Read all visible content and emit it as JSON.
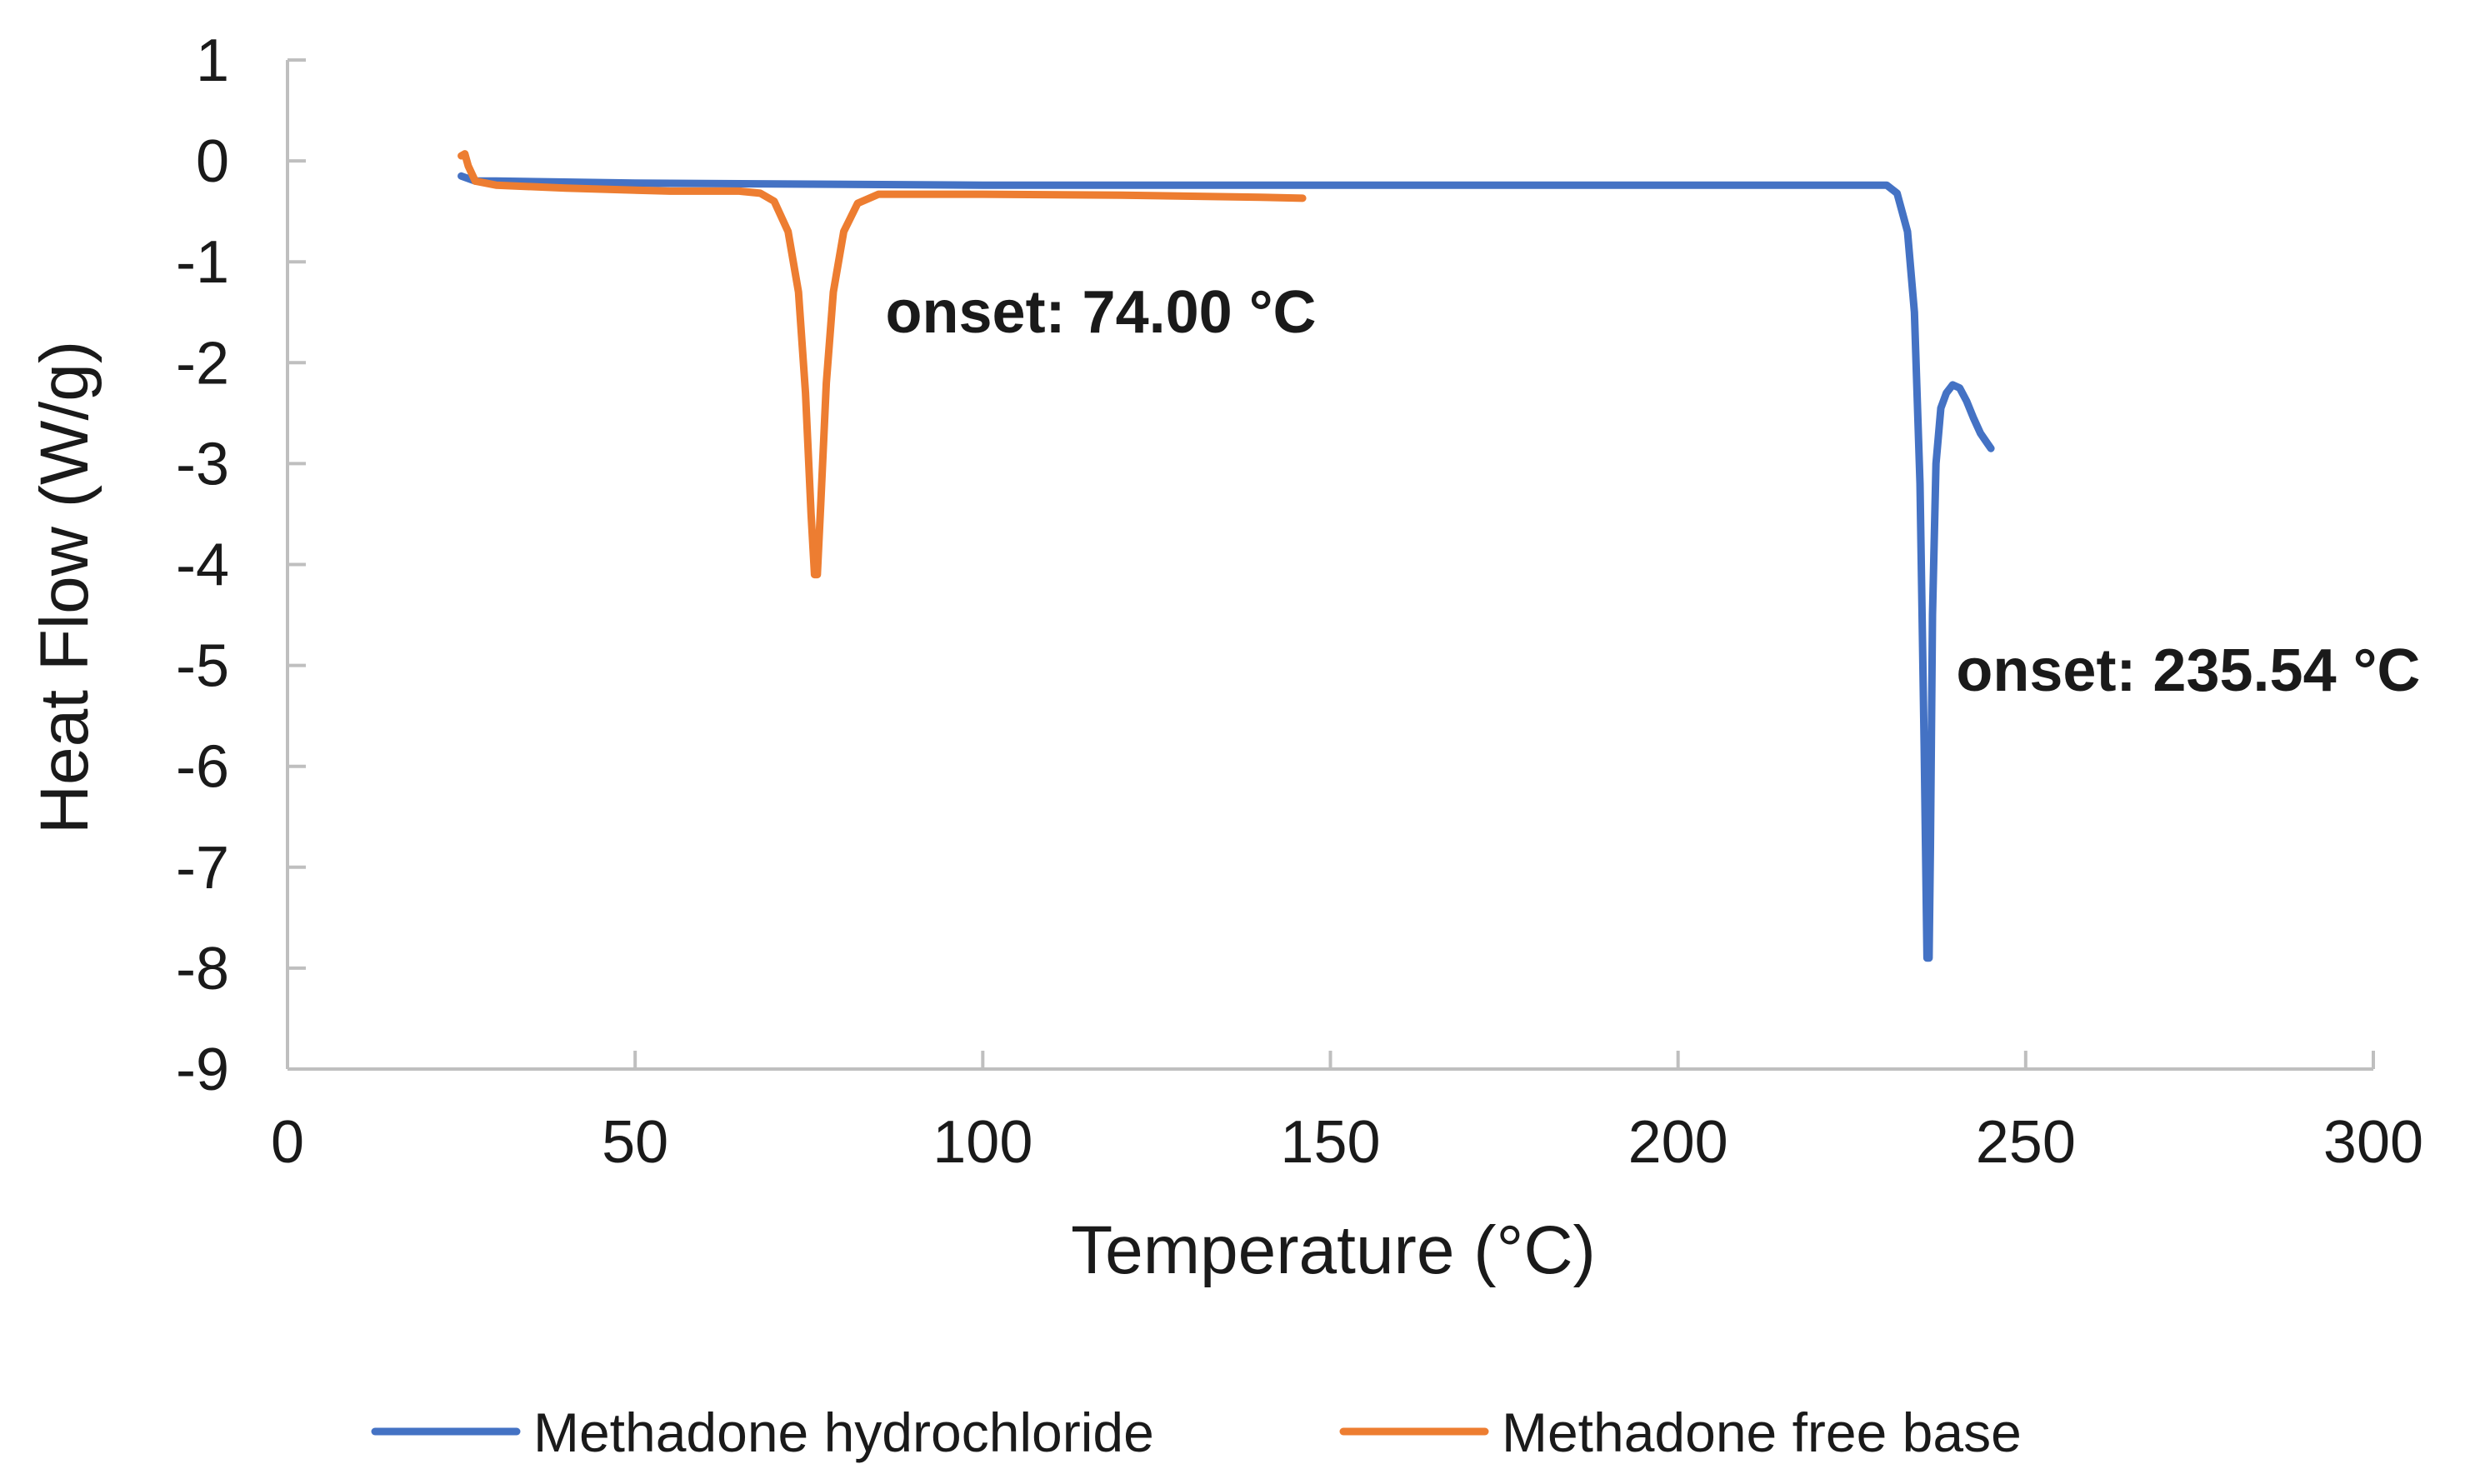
{
  "chart_data": {
    "type": "line",
    "title": "",
    "xlabel": "Temperature (°C)",
    "ylabel": "Heat Flow (W/g)",
    "xlim": [
      0,
      300
    ],
    "ylim": [
      -9,
      1
    ],
    "xticks": [
      0,
      50,
      100,
      150,
      200,
      250,
      300
    ],
    "yticks": [
      1,
      0,
      -1,
      -2,
      -3,
      -4,
      -5,
      -6,
      -7,
      -8,
      -9
    ],
    "xtick_labels": [
      "0",
      "50",
      "100",
      "150",
      "200",
      "250",
      "300"
    ],
    "ytick_labels": [
      "1",
      "0",
      "-1",
      "-2",
      "-3",
      "-4",
      "-5",
      "-6",
      "-7",
      "-8",
      "-9"
    ],
    "grid": false,
    "legend_position": "bottom-center",
    "series": [
      {
        "name": "Methadone hydrochloride",
        "color": "#4472C4",
        "x": [
          25,
          27,
          30,
          50,
          100,
          150,
          200,
          225,
          230,
          231.5,
          233,
          234,
          234.8,
          235.4,
          235.8,
          236.1,
          236.3,
          236.6,
          237.1,
          237.8,
          238.6,
          239.5,
          240.5,
          241.5,
          242.5,
          243.5,
          244.5,
          245
        ],
        "y": [
          -0.15,
          -0.2,
          -0.2,
          -0.22,
          -0.24,
          -0.24,
          -0.24,
          -0.24,
          -0.24,
          -0.32,
          -0.7,
          -1.5,
          -3.2,
          -5.8,
          -7.9,
          -7.9,
          -6.8,
          -4.5,
          -3.0,
          -2.45,
          -2.3,
          -2.22,
          -2.25,
          -2.38,
          -2.55,
          -2.7,
          -2.8,
          -2.85
        ]
      },
      {
        "name": "Methadone free base",
        "color": "#ED7D31",
        "x": [
          25,
          25.5,
          26,
          27,
          30,
          40,
          55,
          65,
          68,
          70,
          72,
          73.5,
          74.5,
          75.3,
          75.8,
          76.2,
          76.7,
          77.5,
          78.5,
          80,
          82,
          85,
          90,
          100,
          120,
          140,
          146
        ],
        "y": [
          0.05,
          0.07,
          -0.05,
          -0.2,
          -0.24,
          -0.27,
          -0.3,
          -0.3,
          -0.32,
          -0.4,
          -0.7,
          -1.3,
          -2.3,
          -3.5,
          -4.1,
          -4.1,
          -3.4,
          -2.2,
          -1.3,
          -0.7,
          -0.42,
          -0.33,
          -0.33,
          -0.33,
          -0.34,
          -0.36,
          -0.37
        ]
      }
    ],
    "annotations": [
      {
        "text": "onset: 74.00 °C",
        "x": 86,
        "y": -1.7
      },
      {
        "text": "onset: 235.54 °C",
        "x": 240,
        "y": -5.25
      }
    ]
  }
}
